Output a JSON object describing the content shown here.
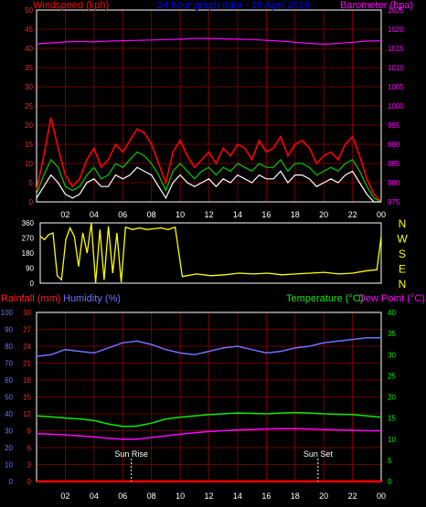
{
  "colors": {
    "background": "#000000",
    "frame": "#ffffff",
    "grid": "#8b0000",
    "windspeed_avg": "#ff0000",
    "windspeed_gust": "#00cc00",
    "windspeed_hist": "#ffffff",
    "barometer": "#ff00ff",
    "title": "#0000ff",
    "direction": "#ffff00",
    "rainfall": "#ff0000",
    "humidity": "#7070ff",
    "temperature": "#00ee00",
    "dewpoint": "#ff00ff",
    "sun_marker": "#ffffff"
  },
  "chart_data": [
    {
      "type": "line",
      "title": "24 hour graph data - 19 April 2016",
      "ylabel": "Windspeed (kph)",
      "y2label": "Barometer (hpa)",
      "x_ticks": [
        "02",
        "04",
        "06",
        "08",
        "10",
        "12",
        "14",
        "16",
        "18",
        "20",
        "22",
        "00"
      ],
      "ylim": [
        0,
        50
      ],
      "y_ticks": [
        "0",
        "5",
        "10",
        "15",
        "20",
        "25",
        "30",
        "35",
        "40",
        "45",
        "50"
      ],
      "y2lim": [
        975,
        1025
      ],
      "y2_ticks": [
        "975",
        "980",
        "985",
        "990",
        "995",
        "1000",
        "1005",
        "1010",
        "1015",
        "1020",
        "1025"
      ],
      "grid": true,
      "series": [
        {
          "axis": "left",
          "hours": [
            0.0,
            0.5,
            1.0,
            1.5,
            2.0,
            2.5,
            3.0,
            3.5,
            4.0,
            4.5,
            5.0,
            5.5,
            6.0,
            6.5,
            7.0,
            7.5,
            8.0,
            8.5,
            9.0,
            9.5,
            10.0,
            10.5,
            11.0,
            11.5,
            12.0,
            12.5,
            13.0,
            13.5,
            14.0,
            14.5,
            15.0,
            15.5,
            16.0,
            16.5,
            17.0,
            17.5,
            18.0,
            18.5,
            19.0,
            19.5,
            20.0,
            20.5,
            21.0,
            21.5,
            22.0,
            22.5,
            23.0,
            23.5,
            24.0
          ],
          "values": [
            3,
            12,
            22,
            14,
            7,
            4,
            6,
            11,
            14,
            9,
            11,
            15,
            13,
            16,
            19,
            18,
            15,
            10,
            5,
            13,
            16,
            12,
            9,
            11,
            13,
            10,
            14,
            12,
            15,
            14,
            11,
            16,
            13,
            14,
            17,
            12,
            15,
            16,
            14,
            10,
            12,
            13,
            11,
            15,
            17,
            12,
            6,
            2,
            0
          ]
        },
        {
          "axis": "left",
          "hours": [
            0.0,
            0.5,
            1.0,
            1.5,
            2.0,
            2.5,
            3.0,
            3.5,
            4.0,
            4.5,
            5.0,
            5.5,
            6.0,
            6.5,
            7.0,
            7.5,
            8.0,
            8.5,
            9.0,
            9.5,
            10.0,
            10.5,
            11.0,
            11.5,
            12.0,
            12.5,
            13.0,
            13.5,
            14.0,
            14.5,
            15.0,
            15.5,
            16.0,
            16.5,
            17.0,
            17.5,
            18.0,
            18.5,
            19.0,
            19.5,
            20.0,
            20.5,
            21.0,
            21.5,
            22.0,
            22.5,
            23.0,
            23.5,
            24.0
          ],
          "values": [
            2,
            7,
            11,
            9,
            4,
            3,
            4,
            7,
            9,
            6,
            7,
            10,
            9,
            11,
            13,
            12,
            10,
            7,
            3,
            8,
            10,
            8,
            6,
            8,
            9,
            7,
            9,
            8,
            10,
            9,
            8,
            10,
            9,
            9,
            11,
            8,
            10,
            10,
            9,
            7,
            8,
            9,
            8,
            10,
            11,
            8,
            4,
            1,
            0
          ]
        },
        {
          "axis": "left",
          "hours": [
            0.0,
            0.5,
            1.0,
            1.5,
            2.0,
            2.5,
            3.0,
            3.5,
            4.0,
            4.5,
            5.0,
            5.5,
            6.0,
            6.5,
            7.0,
            7.5,
            8.0,
            8.5,
            9.0,
            9.5,
            10.0,
            10.5,
            11.0,
            11.5,
            12.0,
            12.5,
            13.0,
            13.5,
            14.0,
            14.5,
            15.0,
            15.5,
            16.0,
            16.5,
            17.0,
            17.5,
            18.0,
            18.5,
            19.0,
            19.5,
            20.0,
            20.5,
            21.0,
            21.5,
            22.0,
            22.5,
            23.0,
            23.5,
            24.0
          ],
          "values": [
            1,
            4,
            7,
            5,
            2,
            1,
            2,
            5,
            6,
            4,
            4,
            7,
            6,
            7,
            9,
            8,
            7,
            4,
            1,
            5,
            7,
            5,
            4,
            5,
            6,
            4,
            6,
            5,
            7,
            6,
            5,
            7,
            6,
            6,
            8,
            5,
            7,
            7,
            6,
            4,
            5,
            6,
            5,
            7,
            8,
            5,
            2,
            0,
            0
          ]
        },
        {
          "axis": "right",
          "hours": [
            0,
            1,
            2,
            3,
            4,
            5,
            6,
            7,
            8,
            9,
            10,
            11,
            12,
            13,
            14,
            15,
            16,
            17,
            18,
            19,
            20,
            21,
            22,
            23,
            24
          ],
          "values": [
            1016.2,
            1016.4,
            1016.7,
            1016.8,
            1016.7,
            1016.9,
            1017.0,
            1017.1,
            1017.2,
            1017.3,
            1017.4,
            1017.6,
            1017.6,
            1017.5,
            1017.4,
            1017.3,
            1017.1,
            1016.9,
            1016.6,
            1016.3,
            1016.1,
            1016.3,
            1016.6,
            1016.9,
            1017.0
          ]
        }
      ]
    },
    {
      "type": "line",
      "ylabel": "Wind direction",
      "ylim": [
        0,
        360
      ],
      "y_ticks": [
        "0",
        "90",
        "180",
        "270",
        "360"
      ],
      "compass": [
        "N",
        "W",
        "S",
        "E",
        "N"
      ],
      "series": [
        {
          "hours": [
            0.0,
            0.3,
            0.6,
            0.9,
            1.2,
            1.5,
            1.8,
            2.1,
            2.4,
            2.7,
            3.0,
            3.3,
            3.6,
            3.9,
            4.2,
            4.5,
            4.8,
            5.1,
            5.4,
            5.7,
            6.0,
            6.5,
            7.0,
            7.5,
            8.0,
            8.5,
            9.0,
            9.5,
            10.0,
            11.0,
            12.0,
            13.0,
            14.0,
            15.0,
            16.0,
            17.0,
            18.0,
            19.0,
            20.0,
            21.0,
            22.0,
            23.0,
            23.7,
            24.0
          ],
          "values": [
            280,
            260,
            290,
            300,
            45,
            20,
            260,
            330,
            280,
            100,
            300,
            180,
            360,
            0,
            320,
            20,
            340,
            60,
            300,
            5,
            335,
            320,
            330,
            320,
            325,
            330,
            320,
            335,
            40,
            55,
            45,
            50,
            60,
            55,
            60,
            50,
            55,
            60,
            65,
            55,
            60,
            75,
            80,
            280
          ]
        }
      ]
    },
    {
      "type": "line",
      "ylabel": "Rainfall (mm)",
      "ylabel2": "Humidity (%)",
      "y2label": "Temperature (°C)",
      "y2label2": "Dew Point (°C)",
      "x_ticks": [
        "02",
        "04",
        "06",
        "08",
        "10",
        "12",
        "14",
        "16",
        "18",
        "20",
        "22",
        "00"
      ],
      "humidity_ticks": [
        "0",
        "10",
        "20",
        "30",
        "40",
        "50",
        "60",
        "70",
        "80",
        "90",
        "100"
      ],
      "rain_ticks": [
        "0",
        "3",
        "6",
        "9",
        "12",
        "15",
        "18",
        "21",
        "24",
        "27",
        "30"
      ],
      "temp_ticks": [
        "0",
        "5",
        "10",
        "15",
        "20",
        "25",
        "30",
        "35",
        "40"
      ],
      "annotations": [
        "Sun Rise",
        "Sun Set"
      ],
      "sunrise_hour": 6.6,
      "sunset_hour": 19.6,
      "grid": true,
      "series": [
        {
          "axis": "rain",
          "hours": [
            0,
            24
          ],
          "values": [
            0,
            0
          ]
        },
        {
          "axis": "humidity",
          "hours": [
            0,
            1,
            2,
            3,
            4,
            5,
            6,
            7,
            8,
            9,
            10,
            11,
            12,
            13,
            14,
            15,
            16,
            17,
            18,
            19,
            20,
            21,
            22,
            23,
            24
          ],
          "values": [
            74,
            75,
            78,
            77,
            76,
            79,
            82,
            83,
            81,
            78,
            76,
            75,
            77,
            79,
            80,
            78,
            76,
            77,
            79,
            80,
            82,
            83,
            84,
            85,
            85
          ]
        },
        {
          "axis": "temp",
          "hours": [
            0,
            1,
            2,
            3,
            4,
            5,
            6,
            7,
            8,
            9,
            10,
            11,
            12,
            13,
            14,
            15,
            16,
            17,
            18,
            19,
            20,
            21,
            22,
            23,
            24
          ],
          "values": [
            15.5,
            15.3,
            15.0,
            14.8,
            14.4,
            13.6,
            13.0,
            13.1,
            13.8,
            14.8,
            15.2,
            15.5,
            15.8,
            16.0,
            16.2,
            16.1,
            16.0,
            16.2,
            16.3,
            16.2,
            16.0,
            15.9,
            15.8,
            15.5,
            15.2
          ]
        },
        {
          "axis": "temp",
          "hours": [
            0,
            1,
            2,
            3,
            4,
            5,
            6,
            7,
            8,
            9,
            10,
            11,
            12,
            13,
            14,
            15,
            16,
            17,
            18,
            19,
            20,
            21,
            22,
            23,
            24
          ],
          "values": [
            11.3,
            11.2,
            11.0,
            10.8,
            10.5,
            10.2,
            10.0,
            10.0,
            10.4,
            10.8,
            11.2,
            11.5,
            11.8,
            12.0,
            12.2,
            12.3,
            12.4,
            12.5,
            12.5,
            12.4,
            12.3,
            12.2,
            12.1,
            12.0,
            12.0
          ]
        }
      ]
    }
  ]
}
